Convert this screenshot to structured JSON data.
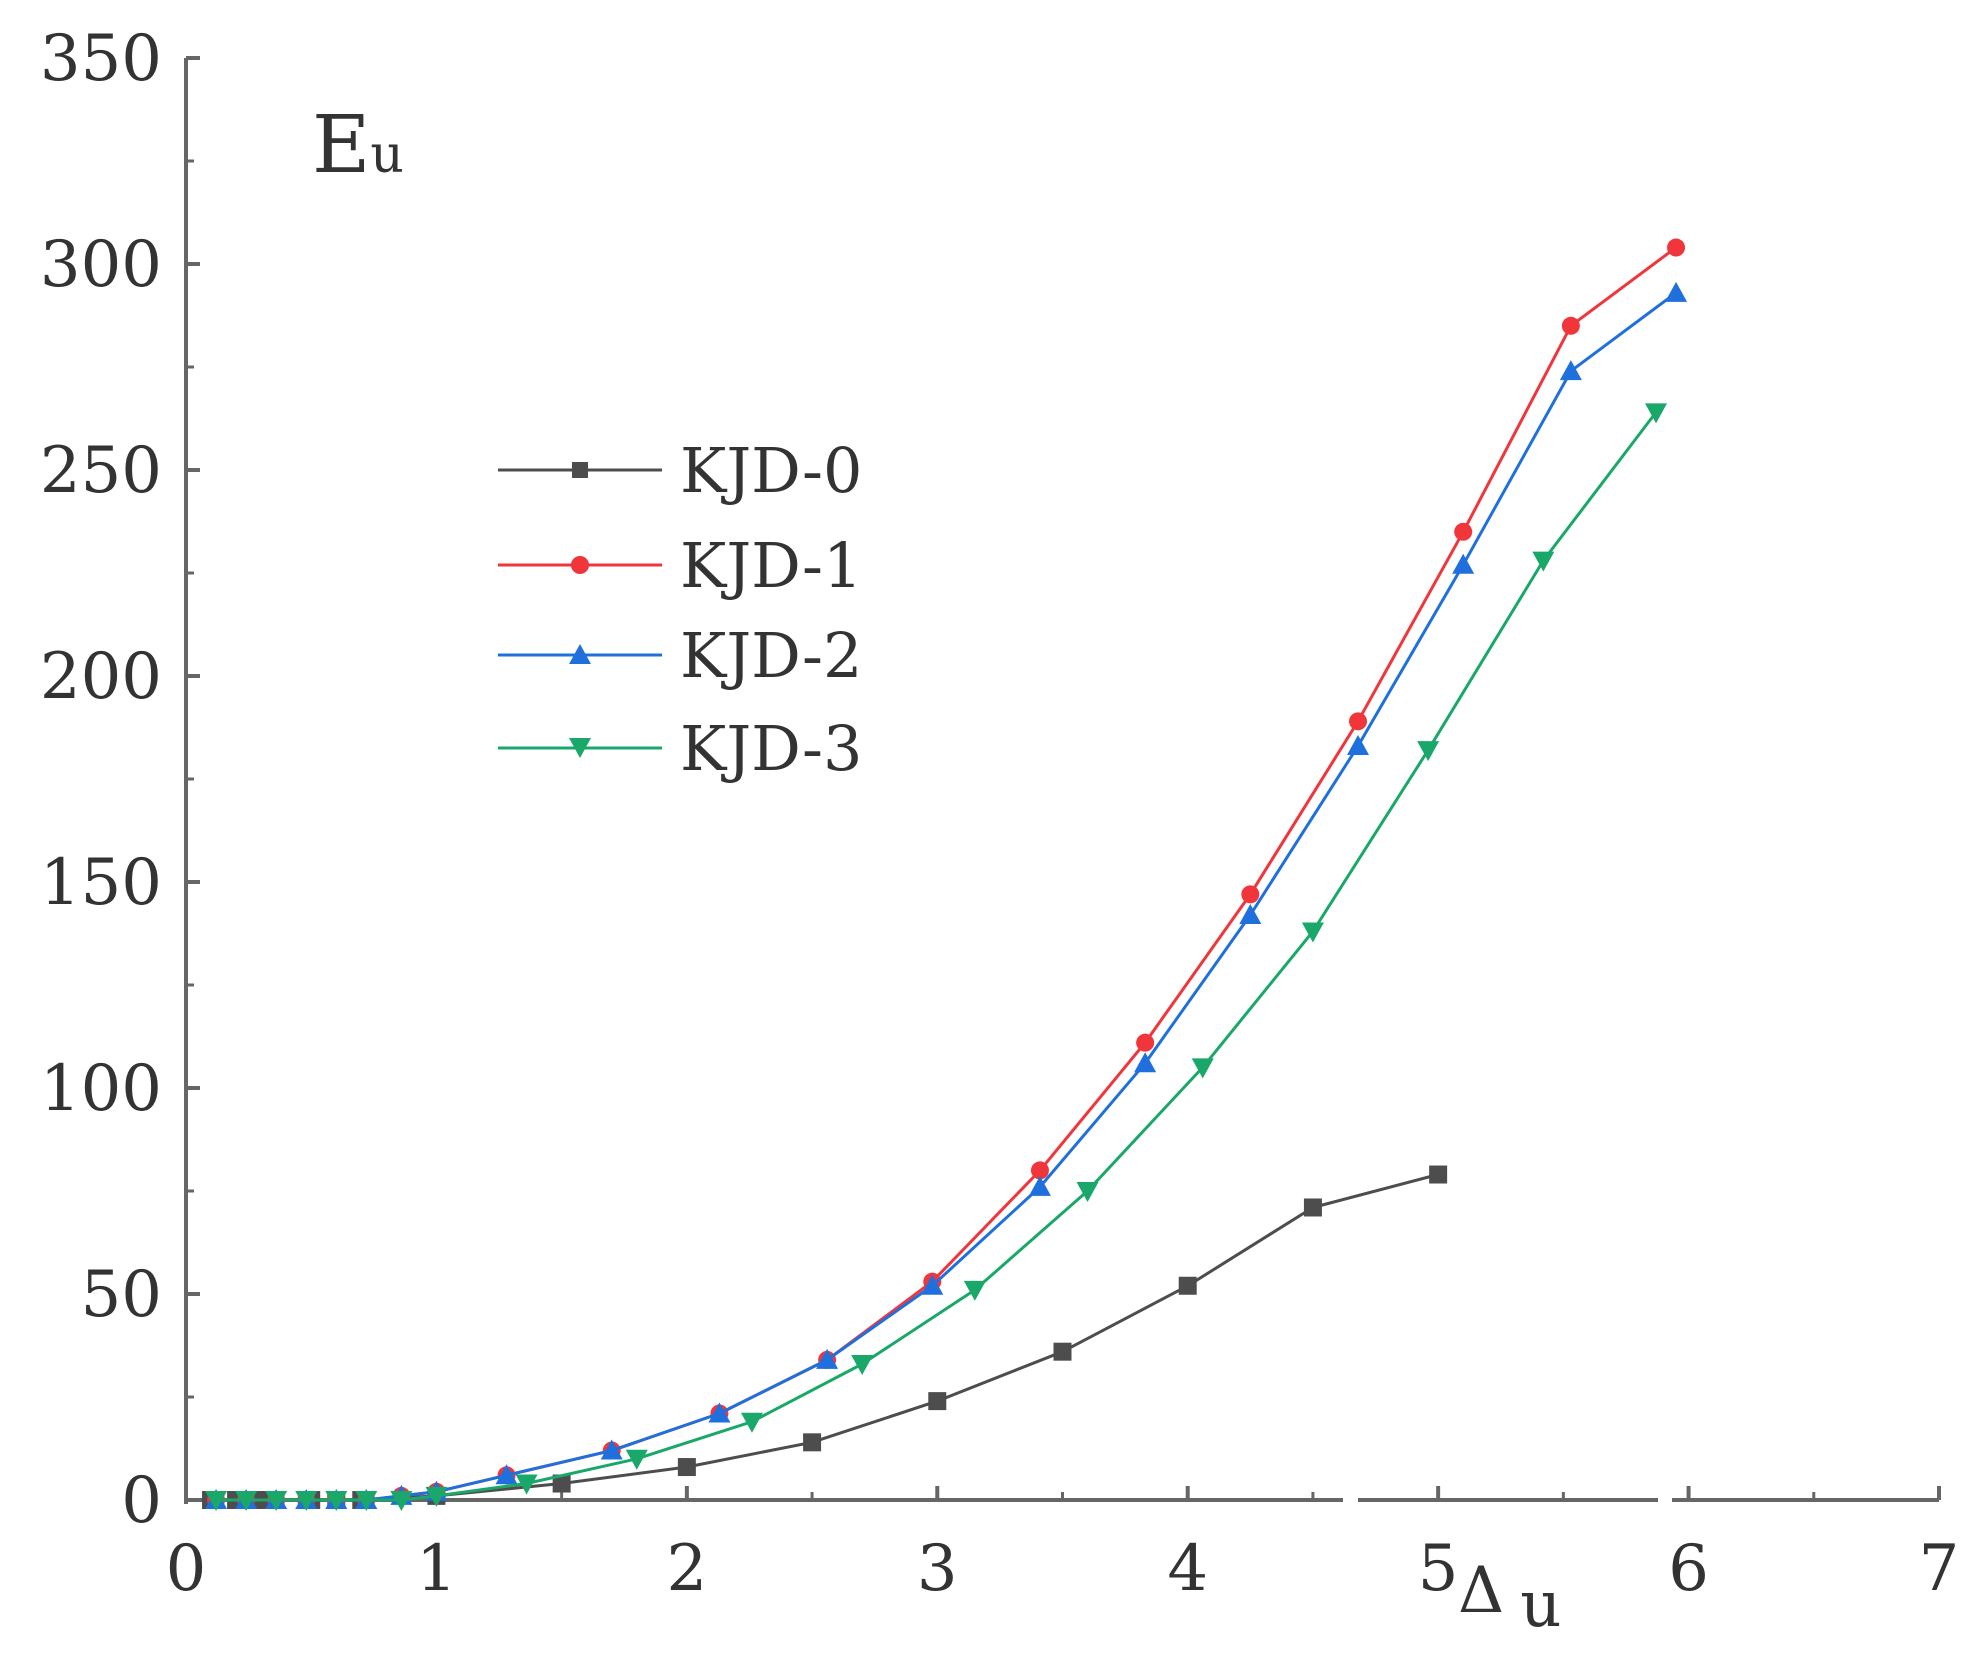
{
  "chart_data": {
    "type": "line",
    "title": "",
    "ylabel": "Eu",
    "ylabel_main": "E",
    "ylabel_sub": "u",
    "xlabel": "Δ u",
    "xlabel_main": "Δ",
    "xlabel_sub": "u",
    "xlim": [
      0,
      7
    ],
    "ylim": [
      0,
      350
    ],
    "xticks": [
      0,
      1,
      2,
      3,
      4,
      5,
      6,
      7
    ],
    "xtick_labels": [
      "0",
      "1",
      "2",
      "3",
      "4",
      "5",
      "6",
      "7"
    ],
    "yticks": [
      0,
      50,
      100,
      150,
      200,
      250,
      300,
      350
    ],
    "ytick_labels": [
      "0",
      "50",
      "100",
      "150",
      "200",
      "250",
      "300",
      "350"
    ],
    "grid": false,
    "legend_position": "upper-left",
    "series": [
      {
        "name": "KJD-0",
        "color": "#4d4d4d",
        "marker": "square",
        "x": [
          0.1,
          0.2,
          0.3,
          0.5,
          0.6,
          0.7,
          1.0,
          1.5,
          2.0,
          2.5,
          3.0,
          3.5,
          4.0,
          4.5,
          5.0
        ],
        "y": [
          0,
          0,
          0,
          0,
          0,
          0,
          1,
          4,
          8,
          14,
          24,
          36,
          52,
          71,
          79
        ]
      },
      {
        "name": "KJD-1",
        "color": "#f0353b",
        "marker": "circle",
        "x": [
          0.12,
          0.24,
          0.36,
          0.48,
          0.6,
          0.72,
          0.86,
          1.0,
          1.28,
          1.7,
          2.13,
          2.56,
          2.98,
          3.41,
          3.83,
          4.25,
          4.68,
          5.1,
          5.53,
          5.95
        ],
        "y": [
          0,
          0,
          0,
          0,
          0,
          0,
          1,
          2,
          6,
          12,
          21,
          34,
          53,
          80,
          111,
          147,
          189,
          235,
          285,
          304
        ]
      },
      {
        "name": "KJD-2",
        "color": "#1f70dc",
        "marker": "triangle-up",
        "x": [
          0.12,
          0.24,
          0.36,
          0.48,
          0.6,
          0.72,
          0.86,
          1.0,
          1.28,
          1.7,
          2.13,
          2.56,
          2.98,
          3.41,
          3.83,
          4.25,
          4.68,
          5.1,
          5.53,
          5.95
        ],
        "y": [
          0,
          0,
          0,
          0,
          0,
          0,
          1,
          2,
          6,
          12,
          21,
          34,
          52,
          76,
          106,
          142,
          183,
          227,
          274,
          293
        ]
      },
      {
        "name": "KJD-3",
        "color": "#1aa86a",
        "marker": "triangle-down",
        "x": [
          0.12,
          0.24,
          0.36,
          0.48,
          0.6,
          0.72,
          0.86,
          1.0,
          1.36,
          1.8,
          2.26,
          2.7,
          3.15,
          3.6,
          4.06,
          4.5,
          4.96,
          5.42,
          5.87
        ],
        "y": [
          0,
          0,
          0,
          0,
          0,
          0,
          0,
          1,
          4,
          10,
          19,
          33,
          51,
          75,
          105,
          138,
          182,
          228,
          264
        ]
      }
    ]
  }
}
